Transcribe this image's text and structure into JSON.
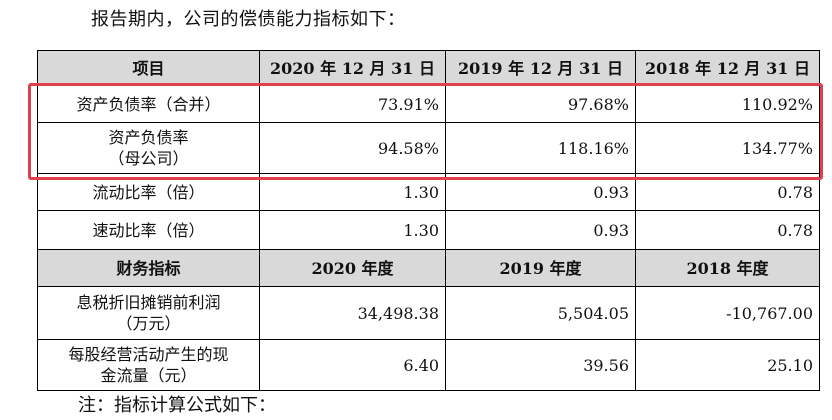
{
  "intro": "报告期内，公司的偿债能力指标如下：",
  "table": {
    "header1": [
      "项目",
      "2020 年 12 月 31 日",
      "2019 年 12 月 31 日",
      "2018 年 12 月 31 日"
    ],
    "rows1": [
      {
        "label": "资产负债率（合并）",
        "values": [
          "73.91%",
          "97.68%",
          "110.92%"
        ]
      },
      {
        "label_line1": "资产负债率",
        "label_line2": "（母公司）",
        "values": [
          "94.58%",
          "118.16%",
          "134.77%"
        ]
      },
      {
        "label": "流动比率（倍）",
        "values": [
          "1.30",
          "0.93",
          "0.78"
        ]
      },
      {
        "label": "速动比率（倍）",
        "values": [
          "1.30",
          "0.93",
          "0.78"
        ]
      }
    ],
    "header2": [
      "财务指标",
      "2020 年度",
      "2019 年度",
      "2018 年度"
    ],
    "rows2": [
      {
        "label_line1": "息税折旧摊销前利润",
        "label_line2": "（万元）",
        "values": [
          "34,498.38",
          "5,504.05",
          "-10,767.00"
        ]
      },
      {
        "label_line1": "每股经营活动产生的现",
        "label_line2": "金流量（元）",
        "values": [
          "6.40",
          "39.56",
          "25.10"
        ]
      }
    ]
  },
  "highlight_color": "#e0404b",
  "footnote": "注：指标计算公式如下："
}
